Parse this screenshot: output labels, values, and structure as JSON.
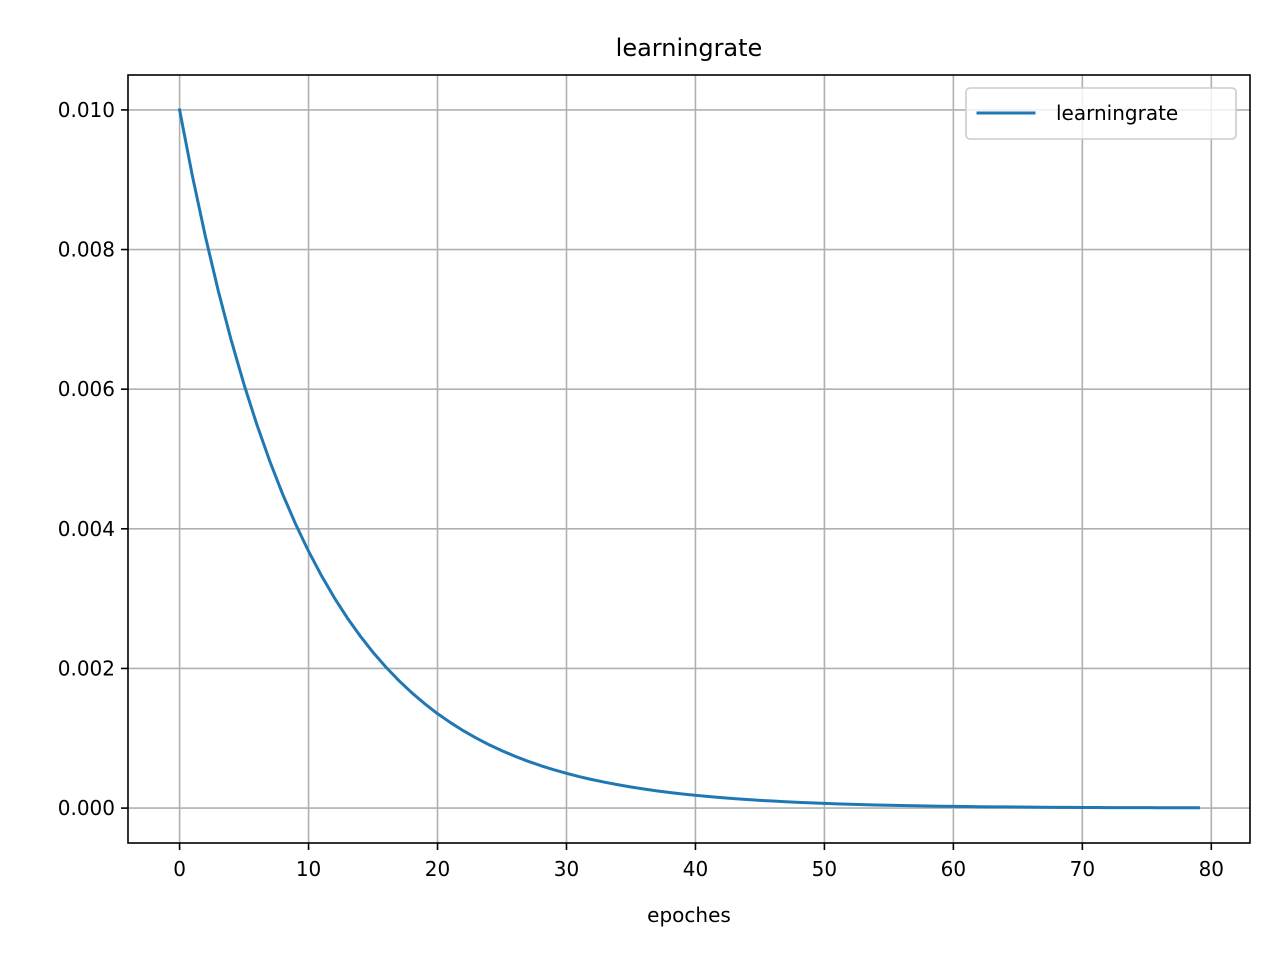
{
  "chart_data": {
    "type": "line",
    "title": "learningrate",
    "xlabel": "epoches",
    "ylabel": "",
    "xlim": [
      -4,
      83
    ],
    "ylim": [
      -0.0005,
      0.0105
    ],
    "xticks": [
      0,
      10,
      20,
      30,
      40,
      50,
      60,
      70,
      80
    ],
    "yticks": [
      0.0,
      0.002,
      0.004,
      0.006,
      0.008,
      0.01
    ],
    "xtick_labels": [
      "0",
      "10",
      "20",
      "30",
      "40",
      "50",
      "60",
      "70",
      "80"
    ],
    "ytick_labels": [
      "0.000",
      "0.002",
      "0.004",
      "0.006",
      "0.008",
      "0.010"
    ],
    "grid": true,
    "legend_position": "top-right",
    "series": [
      {
        "name": "learningrate",
        "color": "#1f77b4",
        "x": [
          0,
          1,
          2,
          3,
          4,
          5,
          6,
          7,
          8,
          9,
          10,
          11,
          12,
          13,
          14,
          15,
          16,
          17,
          18,
          19,
          20,
          21,
          22,
          23,
          24,
          25,
          26,
          27,
          28,
          29,
          30,
          31,
          32,
          33,
          34,
          35,
          36,
          37,
          38,
          39,
          40,
          41,
          42,
          43,
          44,
          45,
          46,
          47,
          48,
          49,
          50,
          51,
          52,
          53,
          54,
          55,
          56,
          57,
          58,
          59,
          60,
          61,
          62,
          63,
          64,
          65,
          66,
          67,
          68,
          69,
          70,
          71,
          72,
          73,
          74,
          75,
          76,
          77,
          78,
          79
        ],
        "y": [
          0.01,
          0.009048,
          0.008187,
          0.007408,
          0.006703,
          0.006065,
          0.005488,
          0.004966,
          0.004493,
          0.004066,
          0.003679,
          0.003329,
          0.003012,
          0.002725,
          0.002466,
          0.002231,
          0.002019,
          0.001827,
          0.001653,
          0.001496,
          0.001353,
          0.001225,
          0.001108,
          0.001003,
          0.000907,
          0.000821,
          0.000743,
          0.000672,
          0.000608,
          0.00055,
          0.000498,
          0.00045,
          0.000408,
          0.000369,
          0.000334,
          0.000302,
          0.000273,
          0.000247,
          0.000224,
          0.000202,
          0.000183,
          0.000166,
          0.00015,
          0.000136,
          0.000123,
          0.000111,
          0.000101,
          9.1e-05,
          8.2e-05,
          7.4e-05,
          6.7e-05,
          6.1e-05,
          5.5e-05,
          5e-05,
          4.5e-05,
          4.1e-05,
          3.7e-05,
          3.3e-05,
          3e-05,
          2.7e-05,
          2.5e-05,
          2.2e-05,
          2e-05,
          1.8e-05,
          1.7e-05,
          1.5e-05,
          1.4e-05,
          1.2e-05,
          1.1e-05,
          1e-05,
          9e-06,
          8e-06,
          7e-06,
          7e-06,
          6e-06,
          6e-06,
          5e-06,
          5e-06,
          4e-06,
          4e-06
        ]
      }
    ]
  }
}
